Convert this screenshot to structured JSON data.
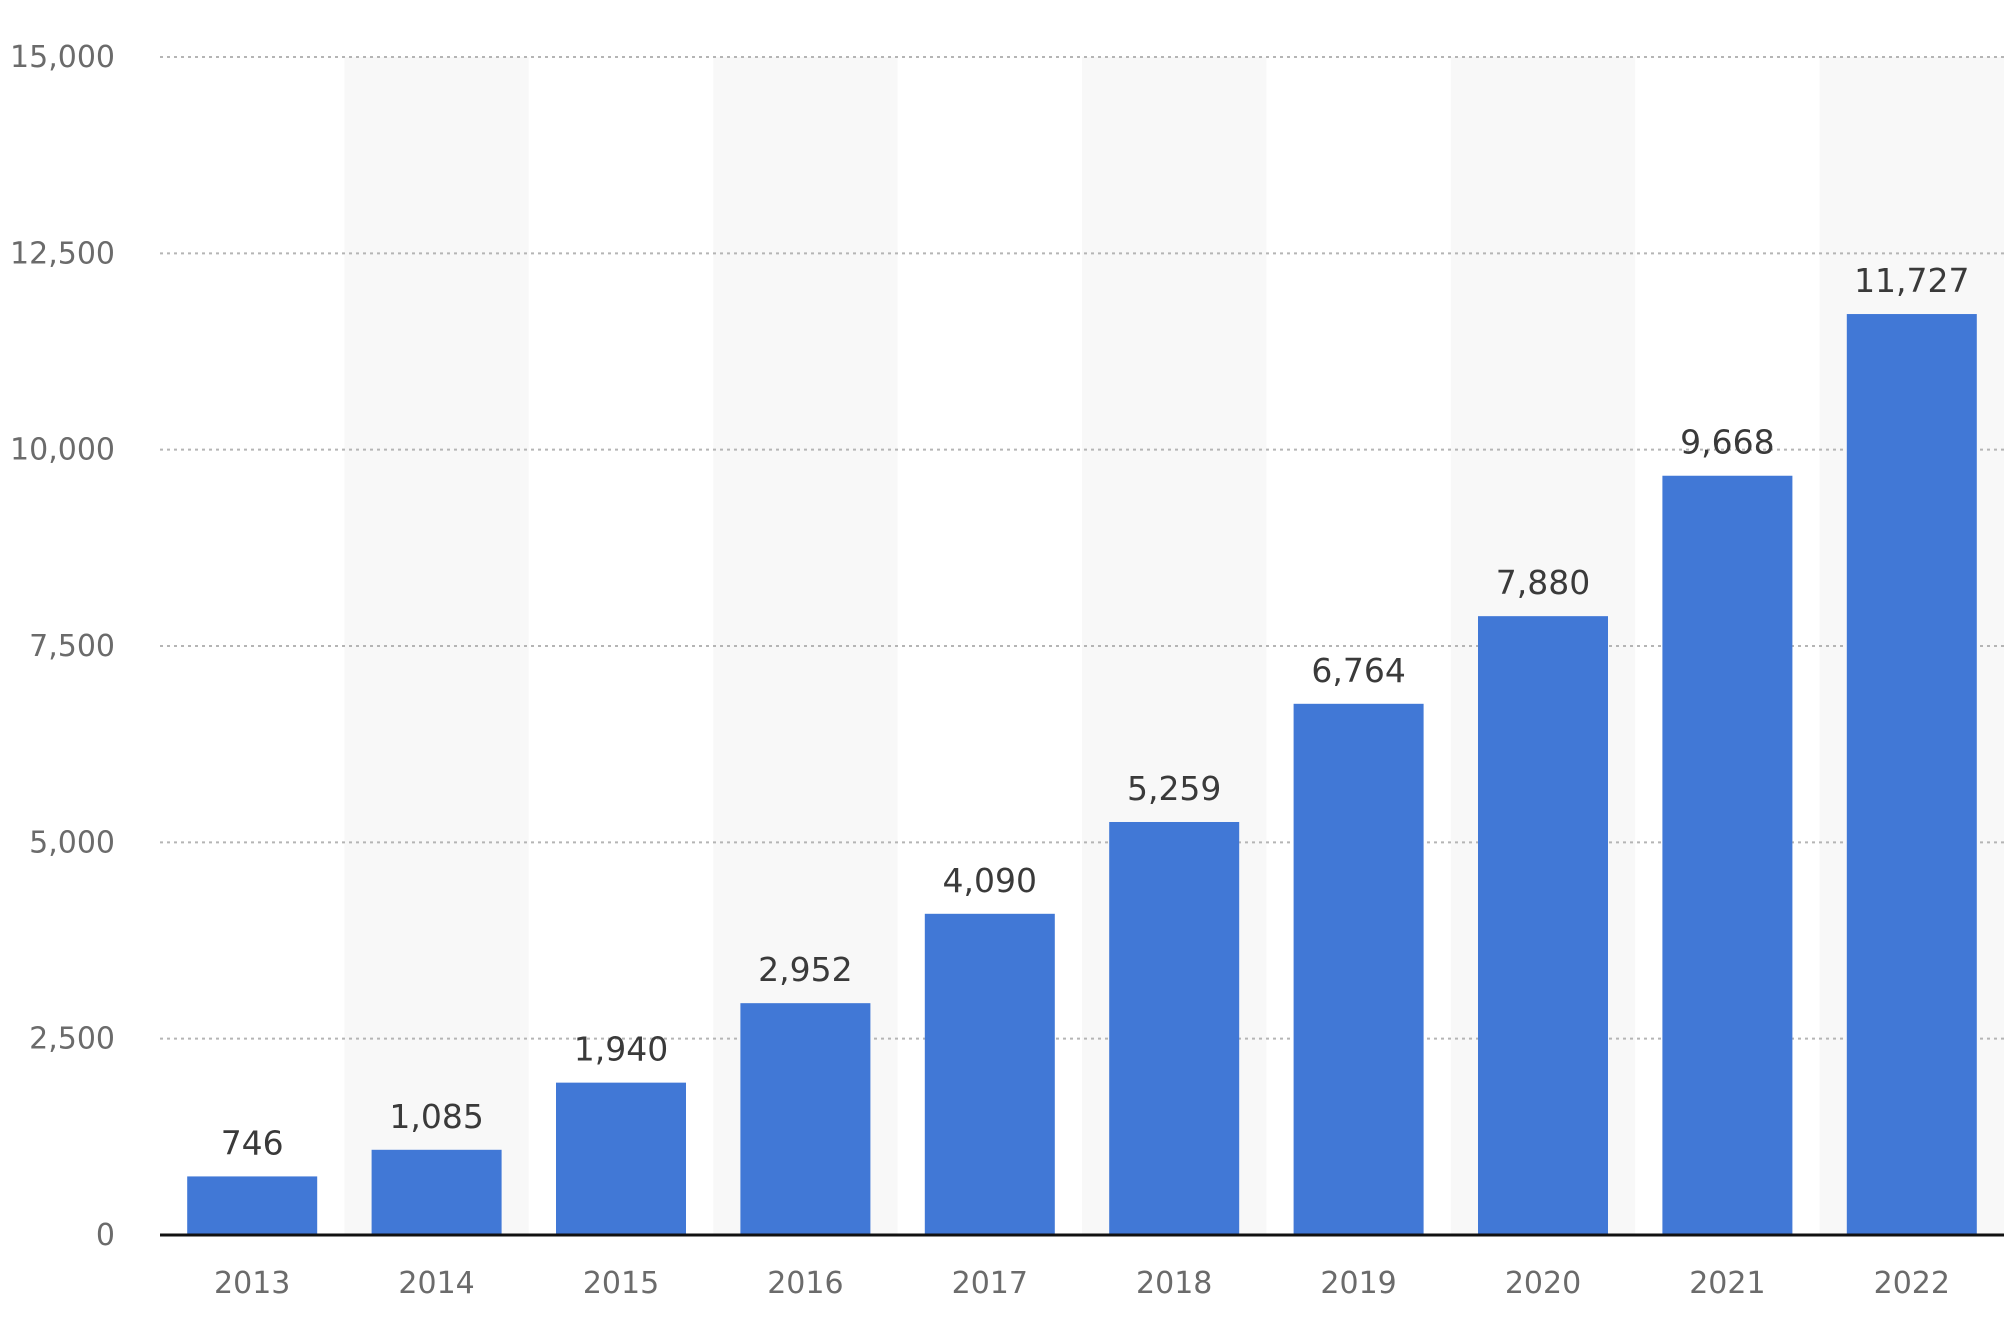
{
  "chart_data": {
    "type": "bar",
    "categories": [
      "2013",
      "2014",
      "2015",
      "2016",
      "2017",
      "2018",
      "2019",
      "2020",
      "2021",
      "2022"
    ],
    "values": [
      746,
      1085,
      1940,
      2952,
      4090,
      5259,
      6764,
      7880,
      9668,
      11727
    ],
    "value_labels": [
      "746",
      "1,085",
      "1,940",
      "2,952",
      "4,090",
      "5,259",
      "6,764",
      "7,880",
      "9,668",
      "11,727"
    ],
    "yticks": [
      0,
      2500,
      5000,
      7500,
      10000,
      12500,
      15000
    ],
    "ytick_labels": [
      "0",
      "2,500",
      "5,000",
      "7,500",
      "10,000",
      "12,500",
      "15,000"
    ],
    "ylim": [
      0,
      15000
    ],
    "title": "",
    "xlabel": "",
    "ylabel": "",
    "grid": true,
    "grid_style": "dotted",
    "legend": "none",
    "colors": {
      "bar": "#4178d6",
      "band": "#f8f8f8",
      "grid": "#b5b5b5",
      "axis": "#111111",
      "tick_text": "#6b6b6b",
      "label_text": "#3a3a3a"
    }
  }
}
